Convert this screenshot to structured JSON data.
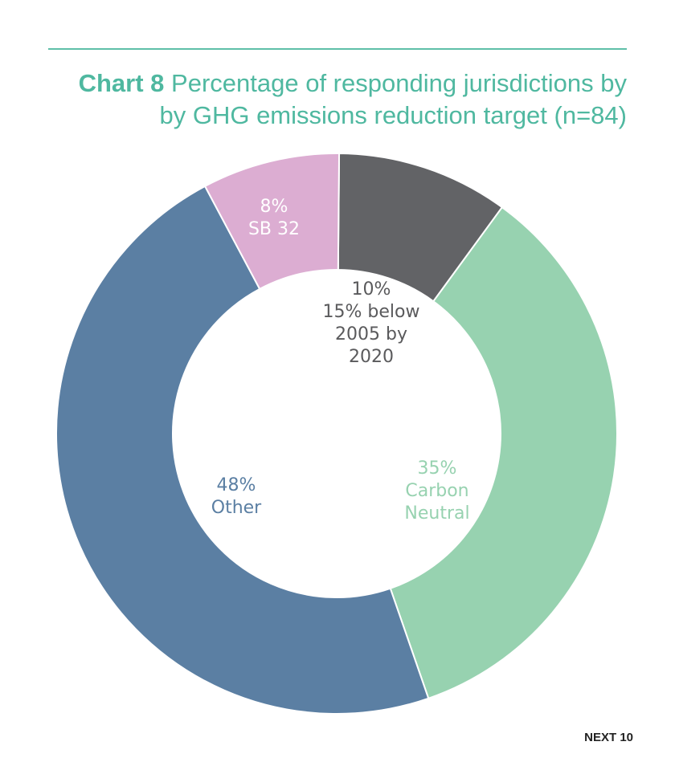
{
  "header": {
    "title_prefix": "Chart 8",
    "title_line1": "Percentage of responding jurisdictions by",
    "title_line2": "by GHG emissions reduction target (n=84)"
  },
  "footer": {
    "credit": "NEXT 10"
  },
  "chart_data": {
    "type": "pie",
    "style": "donut",
    "title": "Chart 8 Percentage of responding jurisdictions by by GHG emissions reduction target (n=84)",
    "n": 84,
    "slices": [
      {
        "label_lines": [
          "10%",
          "15% below",
          "2005 by",
          "2020"
        ],
        "value": 10,
        "color": "#626366",
        "text_color": "#5a5a5c"
      },
      {
        "label_lines": [
          "35%",
          "Carbon",
          "Neutral"
        ],
        "value": 35,
        "color": "#97d2b0",
        "text_color": "#97d2b0"
      },
      {
        "label_lines": [
          "48%",
          "Other"
        ],
        "value": 48,
        "color": "#5b7fa3",
        "text_color": "#5b7fa3"
      },
      {
        "label_lines": [
          "8%",
          "SB 32"
        ],
        "value": 8,
        "color": "#dcadd2",
        "text_color": "#ffffff"
      }
    ]
  }
}
